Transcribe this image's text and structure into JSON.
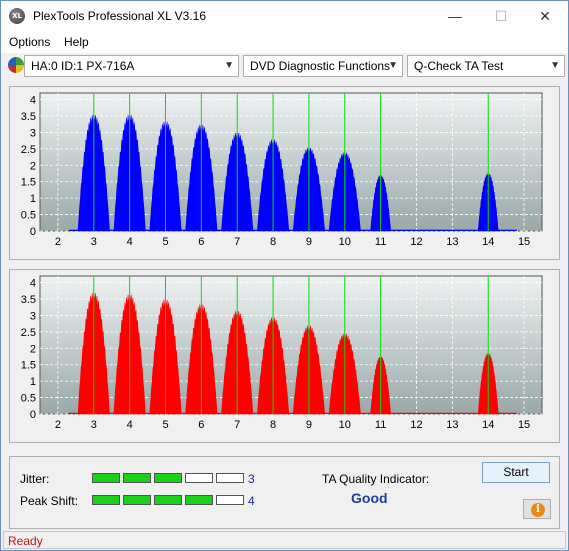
{
  "window": {
    "title": "PlexTools Professional XL V3.16",
    "icon_text": "XL",
    "minimize": "—",
    "maximize": "☐",
    "close": "✕"
  },
  "menu": {
    "items": [
      "Options",
      "Help"
    ]
  },
  "toolbar": {
    "drive": "HA:0 ID:1  PX-716A",
    "function": "DVD Diagnostic Functions",
    "test": "Q-Check TA Test"
  },
  "colors": {
    "plot_bg_top": "#eef2f2",
    "plot_bg_bottom": "#9aa8a8",
    "marker": "#00dd00",
    "series1": "#0000ff",
    "series2": "#ff0000"
  },
  "chart_data": [
    {
      "type": "area",
      "series": [
        {
          "color": "#0000ff",
          "peaks": [
            {
              "x": 3,
              "y": 3.55
            },
            {
              "x": 4,
              "y": 3.55
            },
            {
              "x": 5,
              "y": 3.35
            },
            {
              "x": 6,
              "y": 3.25
            },
            {
              "x": 7,
              "y": 3.0
            },
            {
              "x": 8,
              "y": 2.8
            },
            {
              "x": 9,
              "y": 2.55
            },
            {
              "x": 10,
              "y": 2.4
            },
            {
              "x": 11,
              "y": 1.7
            },
            {
              "x": 14,
              "y": 1.75
            }
          ]
        }
      ],
      "xlim": [
        1.5,
        15.5
      ],
      "ylim": [
        0,
        4.2
      ],
      "xticks": [
        "2",
        "3",
        "4",
        "5",
        "6",
        "7",
        "8",
        "9",
        "10",
        "11",
        "12",
        "13",
        "14",
        "15"
      ],
      "yticks": [
        "0",
        "0.5",
        "1",
        "1.5",
        "2",
        "2.5",
        "3",
        "3.5",
        "4"
      ],
      "marker_lines": [
        3,
        4,
        5,
        6,
        7,
        8,
        9,
        10,
        11,
        14
      ],
      "grid": true
    },
    {
      "type": "area",
      "series": [
        {
          "color": "#ff0000",
          "peaks": [
            {
              "x": 3,
              "y": 3.7
            },
            {
              "x": 4,
              "y": 3.65
            },
            {
              "x": 5,
              "y": 3.5
            },
            {
              "x": 6,
              "y": 3.35
            },
            {
              "x": 7,
              "y": 3.15
            },
            {
              "x": 8,
              "y": 2.95
            },
            {
              "x": 9,
              "y": 2.7
            },
            {
              "x": 10,
              "y": 2.45
            },
            {
              "x": 11,
              "y": 1.75
            },
            {
              "x": 14,
              "y": 1.85
            }
          ]
        }
      ],
      "xlim": [
        1.5,
        15.5
      ],
      "ylim": [
        0,
        4.2
      ],
      "xticks": [
        "2",
        "3",
        "4",
        "5",
        "6",
        "7",
        "8",
        "9",
        "10",
        "11",
        "12",
        "13",
        "14",
        "15"
      ],
      "yticks": [
        "0",
        "0.5",
        "1",
        "1.5",
        "2",
        "2.5",
        "3",
        "3.5",
        "4"
      ],
      "marker_lines": [
        3,
        4,
        5,
        6,
        7,
        8,
        9,
        10,
        11,
        14
      ],
      "grid": true
    }
  ],
  "results": {
    "jitter_label": "Jitter:",
    "jitter_value": "3",
    "jitter_level": 3,
    "peak_label": "Peak Shift:",
    "peak_value": "4",
    "peak_level": 4,
    "bar_segments": 5,
    "ta_label": "TA Quality Indicator:",
    "ta_value": "Good",
    "start_label": "Start",
    "info_icon": "i"
  },
  "status": {
    "text": "Ready"
  }
}
